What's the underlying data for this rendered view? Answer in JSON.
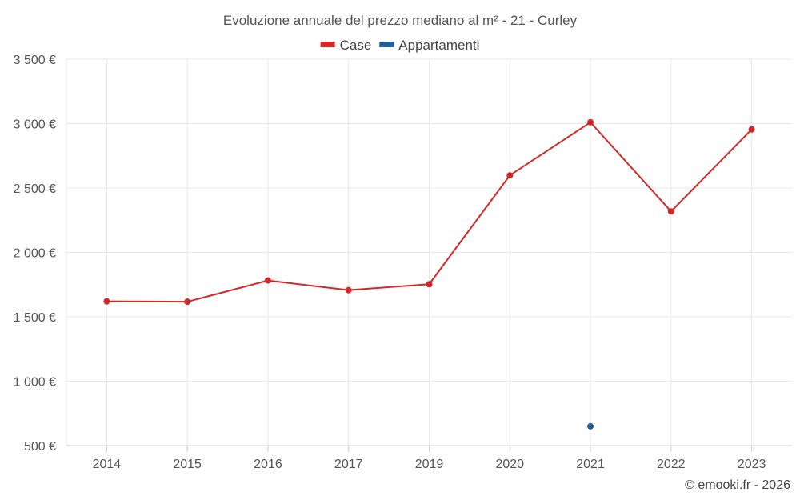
{
  "chart_data": {
    "type": "line",
    "title": "Evoluzione annuale del prezzo mediano al m² - 21 - Curley",
    "categories": [
      "2014",
      "2015",
      "2016",
      "2017",
      "2019",
      "2020",
      "2021",
      "2022",
      "2023"
    ],
    "series": [
      {
        "name": "Case",
        "color": "#d62728",
        "values": [
          1620,
          1617,
          1782,
          1707,
          1753,
          2598,
          3010,
          2318,
          2955
        ]
      },
      {
        "name": "Appartamenti",
        "color": "#1f5f9a",
        "values": [
          null,
          null,
          null,
          null,
          null,
          null,
          650,
          null,
          null
        ]
      }
    ],
    "ylim": [
      500,
      3500
    ],
    "yticks": [
      500,
      1000,
      1500,
      2000,
      2500,
      3000,
      3500
    ],
    "ytick_labels": [
      "500 €",
      "1 000 €",
      "1 500 €",
      "2 000 €",
      "2 500 €",
      "3 000 €",
      "3 500 €"
    ],
    "xlabel": "",
    "ylabel": "",
    "grid": true,
    "legend_position": "top-center"
  },
  "credit": "© emooki.fr - 2026"
}
